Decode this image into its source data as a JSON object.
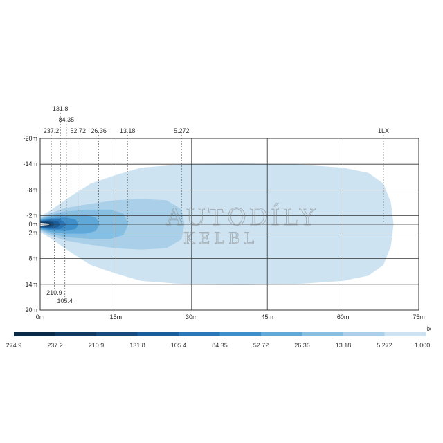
{
  "watermark": [
    "AUTODÍLY",
    "KELBL"
  ],
  "chart_data": {
    "type": "area",
    "title": "",
    "xlabel": "",
    "ylabel": "",
    "unit": "lx",
    "xlim": [
      0,
      75
    ],
    "ylim": [
      -20,
      20
    ],
    "x_ticks": [
      {
        "value": 0,
        "label": "0m"
      },
      {
        "value": 15,
        "label": "15m"
      },
      {
        "value": 30,
        "label": "30m"
      },
      {
        "value": 45,
        "label": "45m"
      },
      {
        "value": 60,
        "label": "60m"
      },
      {
        "value": 75,
        "label": "75m"
      }
    ],
    "y_ticks": [
      {
        "value": -20,
        "label": "-20m"
      },
      {
        "value": -14,
        "label": "-14m"
      },
      {
        "value": -8,
        "label": "-8m"
      },
      {
        "value": -2,
        "label": "-2m"
      },
      {
        "value": 0,
        "label": "0m"
      },
      {
        "value": 2,
        "label": "2m"
      },
      {
        "value": 8,
        "label": "8m"
      },
      {
        "value": 14,
        "label": "14m"
      },
      {
        "value": 20,
        "label": "20m"
      }
    ],
    "isolux_reach_markers": [
      {
        "label": "237.2",
        "x": 2.2,
        "side": "top",
        "row": 2
      },
      {
        "label": "131.8",
        "x": 4.0,
        "side": "top",
        "row": 0
      },
      {
        "label": "84.35",
        "x": 5.2,
        "side": "top",
        "row": 1
      },
      {
        "label": "52.72",
        "x": 7.5,
        "side": "top",
        "row": 2
      },
      {
        "label": "26.36",
        "x": 11.6,
        "side": "top",
        "row": 2
      },
      {
        "label": "13.18",
        "x": 17.3,
        "side": "top",
        "row": 2
      },
      {
        "label": "5.272",
        "x": 28.0,
        "side": "top",
        "row": 2
      },
      {
        "label": "1LX",
        "x": 68.0,
        "side": "top",
        "row": 2
      },
      {
        "label": "210.9",
        "x": 2.8,
        "side": "bottom",
        "row": 0
      },
      {
        "label": "105.4",
        "x": 4.9,
        "side": "bottom",
        "row": 1
      }
    ],
    "contours": [
      {
        "level": 1.0,
        "color": "#cde3f1",
        "x_start": 0,
        "x_end": 69.5,
        "half_width": 12.0,
        "profile": [
          [
            0,
            1.8
          ],
          [
            2,
            3.2
          ],
          [
            6,
            6.5
          ],
          [
            10,
            9.5
          ],
          [
            15,
            11.5
          ],
          [
            20,
            13.2
          ],
          [
            30,
            14.1
          ],
          [
            40,
            14.2
          ],
          [
            50,
            14.0
          ],
          [
            60,
            13.2
          ],
          [
            65,
            12.0
          ],
          [
            68,
            9.5
          ],
          [
            69.5,
            5.0
          ],
          [
            70,
            0
          ]
        ]
      },
      {
        "level": 5.272,
        "color": "#a9d0e8",
        "x_start": 0,
        "x_end": 28.5,
        "profile": [
          [
            0,
            1.5
          ],
          [
            2,
            2.6
          ],
          [
            5,
            3.8
          ],
          [
            10,
            4.8
          ],
          [
            15,
            5.6
          ],
          [
            20,
            5.9
          ],
          [
            25,
            5.6
          ],
          [
            28,
            3.5
          ],
          [
            28.6,
            0
          ]
        ]
      },
      {
        "level": 13.18,
        "color": "#86bfe2",
        "x_start": 0,
        "x_end": 17.5,
        "profile": [
          [
            0,
            1.3
          ],
          [
            2,
            2.2
          ],
          [
            5,
            3.0
          ],
          [
            10,
            3.4
          ],
          [
            14,
            3.4
          ],
          [
            16.5,
            2.5
          ],
          [
            17.5,
            0
          ]
        ]
      },
      {
        "level": 26.36,
        "color": "#5fa8d8",
        "x_start": 0,
        "x_end": 11.8,
        "profile": [
          [
            0,
            1.1
          ],
          [
            2,
            1.8
          ],
          [
            5,
            2.2
          ],
          [
            9,
            2.2
          ],
          [
            11,
            1.6
          ],
          [
            11.8,
            0
          ]
        ]
      },
      {
        "level": 52.72,
        "color": "#3f8fca",
        "x_start": 0,
        "x_end": 7.6,
        "profile": [
          [
            0,
            0.9
          ],
          [
            2,
            1.4
          ],
          [
            5,
            1.6
          ],
          [
            7,
            1.1
          ],
          [
            7.6,
            0
          ]
        ]
      },
      {
        "level": 84.35,
        "color": "#2a76b7",
        "x_start": 0,
        "x_end": 5.3,
        "profile": [
          [
            0,
            0.8
          ],
          [
            2,
            1.1
          ],
          [
            4,
            1.1
          ],
          [
            5.3,
            0
          ]
        ]
      },
      {
        "level": 131.8,
        "color": "#1b5e9c",
        "x_start": 0,
        "x_end": 4.0,
        "profile": [
          [
            0,
            0.7
          ],
          [
            2,
            0.9
          ],
          [
            3.5,
            0.7
          ],
          [
            4.0,
            0
          ]
        ]
      },
      {
        "level": 210.9,
        "color": "#154a7d",
        "x_start": 0,
        "x_end": 2.9,
        "profile": [
          [
            0,
            0.55
          ],
          [
            1.5,
            0.65
          ],
          [
            2.5,
            0.5
          ],
          [
            2.9,
            0
          ]
        ]
      },
      {
        "level": 237.2,
        "color": "#0f3a63",
        "x_start": 0,
        "x_end": 2.2,
        "profile": [
          [
            0,
            0.45
          ],
          [
            1.2,
            0.5
          ],
          [
            2.0,
            0.3
          ],
          [
            2.2,
            0
          ]
        ]
      }
    ],
    "legend": {
      "unit_label": "lx",
      "labels": [
        "274.9",
        "237.2",
        "210.9",
        "131.8",
        "105.4",
        "84.35",
        "52.72",
        "26.36",
        "13.18",
        "5.272",
        "1.000"
      ],
      "colors": [
        "#0b2a48",
        "#0f3a63",
        "#154a7d",
        "#1b5e9c",
        "#2a76b7",
        "#3f8fca",
        "#5fa8d8",
        "#86bfe2",
        "#a9d0e8",
        "#cde3f1"
      ]
    }
  }
}
